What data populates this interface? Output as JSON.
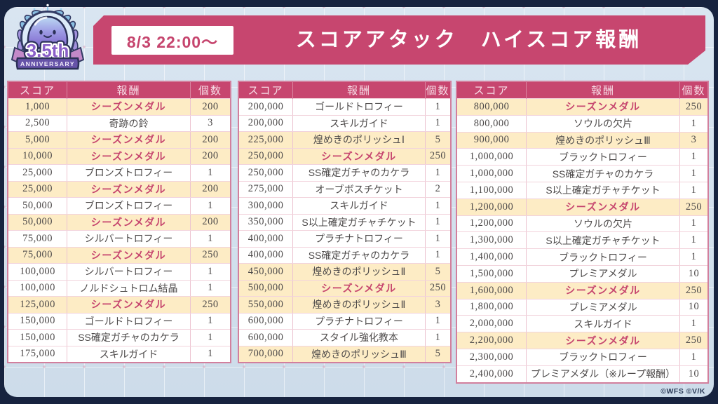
{
  "logo": {
    "title": "3.5th",
    "subtitle": "ANNIVERSARY"
  },
  "banner": {
    "schedule": "8/3 22:00～",
    "title": "スコアアタック　ハイスコア報酬"
  },
  "table_headers": [
    "スコア",
    "報酬",
    "個数"
  ],
  "tables": [
    {
      "rows": [
        {
          "score": "1,000",
          "reward": "シーズンメダル",
          "count": "200",
          "style": "medal"
        },
        {
          "score": "2,500",
          "reward": "奇跡の鈴",
          "count": "3",
          "style": "plain"
        },
        {
          "score": "5,000",
          "reward": "シーズンメダル",
          "count": "200",
          "style": "medal"
        },
        {
          "score": "10,000",
          "reward": "シーズンメダル",
          "count": "200",
          "style": "medal"
        },
        {
          "score": "25,000",
          "reward": "ブロンズトロフィー",
          "count": "1",
          "style": "plain"
        },
        {
          "score": "25,000",
          "reward": "シーズンメダル",
          "count": "200",
          "style": "medal"
        },
        {
          "score": "50,000",
          "reward": "ブロンズトロフィー",
          "count": "1",
          "style": "plain"
        },
        {
          "score": "50,000",
          "reward": "シーズンメダル",
          "count": "200",
          "style": "medal"
        },
        {
          "score": "75,000",
          "reward": "シルバートロフィー",
          "count": "1",
          "style": "plain"
        },
        {
          "score": "75,000",
          "reward": "シーズンメダル",
          "count": "250",
          "style": "medal"
        },
        {
          "score": "100,000",
          "reward": "シルバートロフィー",
          "count": "1",
          "style": "plain"
        },
        {
          "score": "100,000",
          "reward": "ノルドシュトロム結晶",
          "count": "1",
          "style": "plain"
        },
        {
          "score": "125,000",
          "reward": "シーズンメダル",
          "count": "250",
          "style": "medal"
        },
        {
          "score": "150,000",
          "reward": "ゴールドトロフィー",
          "count": "1",
          "style": "plain"
        },
        {
          "score": "150,000",
          "reward": "SS確定ガチャのカケラ",
          "count": "1",
          "style": "plain"
        },
        {
          "score": "175,000",
          "reward": "スキルガイド",
          "count": "1",
          "style": "plain"
        }
      ]
    },
    {
      "rows": [
        {
          "score": "200,000",
          "reward": "ゴールドトロフィー",
          "count": "1",
          "style": "plain"
        },
        {
          "score": "200,000",
          "reward": "スキルガイド",
          "count": "1",
          "style": "plain"
        },
        {
          "score": "225,000",
          "reward": "煌めきのポリッシュⅠ",
          "count": "5",
          "style": "hl"
        },
        {
          "score": "250,000",
          "reward": "シーズンメダル",
          "count": "250",
          "style": "medal"
        },
        {
          "score": "250,000",
          "reward": "SS確定ガチャのカケラ",
          "count": "1",
          "style": "plain"
        },
        {
          "score": "275,000",
          "reward": "オーブボスチケット",
          "count": "2",
          "style": "plain"
        },
        {
          "score": "300,000",
          "reward": "スキルガイド",
          "count": "1",
          "style": "plain"
        },
        {
          "score": "350,000",
          "reward": "S以上確定ガチャチケット",
          "count": "1",
          "style": "plain"
        },
        {
          "score": "400,000",
          "reward": "プラチナトロフィー",
          "count": "1",
          "style": "plain"
        },
        {
          "score": "400,000",
          "reward": "SS確定ガチャのカケラ",
          "count": "1",
          "style": "plain"
        },
        {
          "score": "450,000",
          "reward": "煌めきのポリッシュⅡ",
          "count": "5",
          "style": "hl"
        },
        {
          "score": "500,000",
          "reward": "シーズンメダル",
          "count": "250",
          "style": "medal"
        },
        {
          "score": "550,000",
          "reward": "煌めきのポリッシュⅡ",
          "count": "3",
          "style": "hl"
        },
        {
          "score": "600,000",
          "reward": "プラチナトロフィー",
          "count": "1",
          "style": "plain"
        },
        {
          "score": "600,000",
          "reward": "スタイル強化教本",
          "count": "1",
          "style": "plain"
        },
        {
          "score": "700,000",
          "reward": "煌めきのポリッシュⅢ",
          "count": "5",
          "style": "hl"
        }
      ]
    },
    {
      "rows": [
        {
          "score": "800,000",
          "reward": "シーズンメダル",
          "count": "250",
          "style": "medal"
        },
        {
          "score": "800,000",
          "reward": "ソウルの欠片",
          "count": "1",
          "style": "plain"
        },
        {
          "score": "900,000",
          "reward": "煌めきのポリッシュⅢ",
          "count": "3",
          "style": "hl"
        },
        {
          "score": "1,000,000",
          "reward": "ブラックトロフィー",
          "count": "1",
          "style": "plain"
        },
        {
          "score": "1,000,000",
          "reward": "SS確定ガチャのカケラ",
          "count": "1",
          "style": "plain"
        },
        {
          "score": "1,100,000",
          "reward": "S以上確定ガチャチケット",
          "count": "1",
          "style": "plain"
        },
        {
          "score": "1,200,000",
          "reward": "シーズンメダル",
          "count": "250",
          "style": "medal"
        },
        {
          "score": "1,200,000",
          "reward": "ソウルの欠片",
          "count": "1",
          "style": "plain"
        },
        {
          "score": "1,300,000",
          "reward": "S以上確定ガチャチケット",
          "count": "1",
          "style": "plain"
        },
        {
          "score": "1,400,000",
          "reward": "ブラックトロフィー",
          "count": "1",
          "style": "plain"
        },
        {
          "score": "1,500,000",
          "reward": "プレミアメダル",
          "count": "10",
          "style": "plain"
        },
        {
          "score": "1,600,000",
          "reward": "シーズンメダル",
          "count": "250",
          "style": "medal"
        },
        {
          "score": "1,800,000",
          "reward": "プレミアメダル",
          "count": "10",
          "style": "plain"
        },
        {
          "score": "2,000,000",
          "reward": "スキルガイド",
          "count": "1",
          "style": "plain"
        },
        {
          "score": "2,200,000",
          "reward": "シーズンメダル",
          "count": "250",
          "style": "medal"
        },
        {
          "score": "2,300,000",
          "reward": "ブラックトロフィー",
          "count": "1",
          "style": "plain"
        },
        {
          "score": "2,400,000",
          "reward": "プレミアメダル（※ループ報酬）",
          "count": "10",
          "style": "plain"
        }
      ]
    }
  ],
  "footer": {
    "copyright": "©WFS ©V/K"
  },
  "colors": {
    "accent_pink": "#c7466f",
    "row_highlight": "#fdecc5",
    "medal_text": "#c6456e",
    "frame_navy": "#17233f"
  }
}
